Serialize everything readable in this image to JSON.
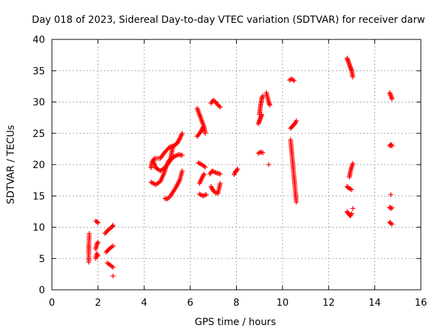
{
  "chart_data": {
    "type": "scatter",
    "title": "Day 018 of 2023, Sidereal Day-to-day VTEC variation (SDTVAR) for receiver darw",
    "xlabel": "GPS time / hours",
    "ylabel": "SDTVAR / TECUs",
    "xlim": [
      0,
      16
    ],
    "ylim": [
      0,
      40
    ],
    "xticks": [
      0,
      2,
      4,
      6,
      8,
      10,
      12,
      14,
      16
    ],
    "yticks": [
      0,
      5,
      10,
      15,
      20,
      25,
      30,
      35,
      40
    ],
    "grid": true,
    "marker": "+",
    "color": "#ff0000",
    "segments": [
      {
        "x": [
          1.6,
          1.6,
          1.6,
          1.62
        ],
        "y": [
          4.4,
          6.3,
          7.1,
          9.0
        ]
      },
      {
        "x": [
          1.9,
          1.95,
          2.0
        ],
        "y": [
          11.0,
          10.9,
          10.7
        ]
      },
      {
        "x": [
          1.9,
          1.95,
          2.0
        ],
        "y": [
          5.0,
          5.8,
          5.4
        ]
      },
      {
        "x": [
          1.9,
          1.95,
          2.0
        ],
        "y": [
          6.5,
          7.3,
          7.6
        ]
      },
      {
        "x": [
          2.3,
          2.45,
          2.6,
          2.65
        ],
        "y": [
          9.0,
          9.6,
          10.0,
          10.3
        ]
      },
      {
        "x": [
          2.35,
          2.5,
          2.65
        ],
        "y": [
          6.0,
          6.6,
          7.0
        ]
      },
      {
        "x": [
          2.4,
          2.55,
          2.65
        ],
        "y": [
          4.3,
          3.9,
          3.6
        ]
      },
      {
        "x": [
          2.65
        ],
        "y": [
          2.2
        ]
      },
      {
        "x": [
          4.3,
          4.35,
          4.45,
          4.7,
          4.9,
          5.1,
          5.3,
          5.45,
          5.55,
          5.65
        ],
        "y": [
          19.5,
          20.5,
          21.0,
          21.0,
          22.0,
          22.8,
          23.0,
          23.5,
          24.2,
          25.0
        ]
      },
      {
        "x": [
          4.4,
          4.5,
          4.7,
          4.9,
          5.1,
          5.3,
          5.5,
          5.65
        ],
        "y": [
          20.5,
          19.5,
          19.0,
          19.5,
          20.5,
          21.3,
          21.6,
          21.5
        ]
      },
      {
        "x": [
          4.3,
          4.5,
          4.7,
          4.85,
          4.95,
          5.05,
          5.15,
          5.2,
          5.25
        ],
        "y": [
          17.2,
          16.8,
          17.3,
          18.5,
          19.6,
          20.5,
          21.0,
          22.0,
          23.0
        ]
      },
      {
        "x": [
          4.9,
          5.0,
          5.1,
          5.25,
          5.4,
          5.55,
          5.65
        ],
        "y": [
          14.6,
          14.5,
          14.8,
          15.6,
          16.5,
          17.6,
          19.0
        ]
      },
      {
        "x": [
          6.3,
          6.4,
          6.5,
          6.6,
          6.65
        ],
        "y": [
          29.0,
          28.0,
          27.0,
          26.0,
          25.0
        ]
      },
      {
        "x": [
          6.3,
          6.4,
          6.5,
          6.55
        ],
        "y": [
          24.5,
          25.0,
          25.5,
          26.0
        ]
      },
      {
        "x": [
          6.35,
          6.5,
          6.65
        ],
        "y": [
          20.3,
          20.0,
          19.6
        ]
      },
      {
        "x": [
          6.4,
          6.5,
          6.6
        ],
        "y": [
          17.0,
          17.8,
          18.5
        ]
      },
      {
        "x": [
          6.4,
          6.55,
          6.7
        ],
        "y": [
          15.3,
          15.0,
          15.2
        ]
      },
      {
        "x": [
          6.9,
          7.0,
          7.1,
          7.2,
          7.3
        ],
        "y": [
          29.8,
          30.3,
          30.0,
          29.5,
          29.2
        ]
      },
      {
        "x": [
          6.85,
          6.95,
          7.05,
          7.2,
          7.3
        ],
        "y": [
          18.5,
          19.0,
          18.8,
          18.6,
          18.5
        ]
      },
      {
        "x": [
          6.9,
          7.0,
          7.1,
          7.2,
          7.3
        ],
        "y": [
          16.5,
          15.8,
          15.5,
          15.4,
          17.0
        ]
      },
      {
        "x": [
          7.9,
          7.95,
          8.0,
          8.05
        ],
        "y": [
          18.4,
          18.8,
          19.0,
          19.3
        ]
      },
      {
        "x": [
          9.0,
          9.05,
          9.1,
          9.15
        ],
        "y": [
          28.0,
          29.5,
          30.5,
          31.0
        ]
      },
      {
        "x": [
          8.95,
          9.0,
          9.05,
          9.1
        ],
        "y": [
          26.5,
          27.0,
          27.5,
          28.0
        ]
      },
      {
        "x": [
          8.95,
          9.05,
          9.15
        ],
        "y": [
          21.8,
          22.0,
          21.9
        ]
      },
      {
        "x": [
          9.3,
          9.35,
          9.4,
          9.45
        ],
        "y": [
          31.5,
          30.8,
          30.0,
          29.5
        ]
      },
      {
        "x": [
          9.4
        ],
        "y": [
          20.0
        ]
      },
      {
        "x": [
          10.3,
          10.4,
          10.5
        ],
        "y": [
          33.5,
          33.7,
          33.4
        ]
      },
      {
        "x": [
          10.35,
          10.45,
          10.55,
          10.6
        ],
        "y": [
          25.8,
          26.2,
          26.6,
          27.0
        ]
      },
      {
        "x": [
          10.35,
          10.4,
          10.45,
          10.5,
          10.55,
          10.6
        ],
        "y": [
          24.0,
          22.0,
          20.0,
          18.0,
          16.0,
          14.0
        ]
      },
      {
        "x": [
          12.8,
          12.85,
          12.9,
          12.95,
          13.0,
          13.05
        ],
        "y": [
          37.0,
          36.5,
          36.0,
          35.5,
          35.0,
          34.0
        ]
      },
      {
        "x": [
          12.9,
          12.95,
          13.0,
          13.05
        ],
        "y": [
          18.0,
          19.0,
          19.6,
          20.2
        ]
      },
      {
        "x": [
          12.8,
          12.85,
          12.9,
          12.95,
          13.0
        ],
        "y": [
          16.5,
          16.3,
          16.2,
          16.1,
          16.0
        ]
      },
      {
        "x": [
          12.8,
          12.85,
          12.9,
          12.95,
          13.0
        ],
        "y": [
          12.5,
          12.2,
          12.0,
          11.8,
          12.2
        ]
      },
      {
        "x": [
          13.05
        ],
        "y": [
          13.0
        ]
      },
      {
        "x": [
          14.65,
          14.7,
          14.75
        ],
        "y": [
          31.5,
          31.0,
          30.5
        ]
      },
      {
        "x": [
          14.65,
          14.7,
          14.75
        ],
        "y": [
          23.0,
          23.2,
          23.0
        ]
      },
      {
        "x": [
          14.7
        ],
        "y": [
          15.2
        ]
      },
      {
        "x": [
          14.65,
          14.7,
          14.75
        ],
        "y": [
          13.2,
          13.0,
          13.1
        ]
      },
      {
        "x": [
          14.65,
          14.7,
          14.75
        ],
        "y": [
          10.8,
          10.6,
          10.5
        ]
      }
    ]
  }
}
